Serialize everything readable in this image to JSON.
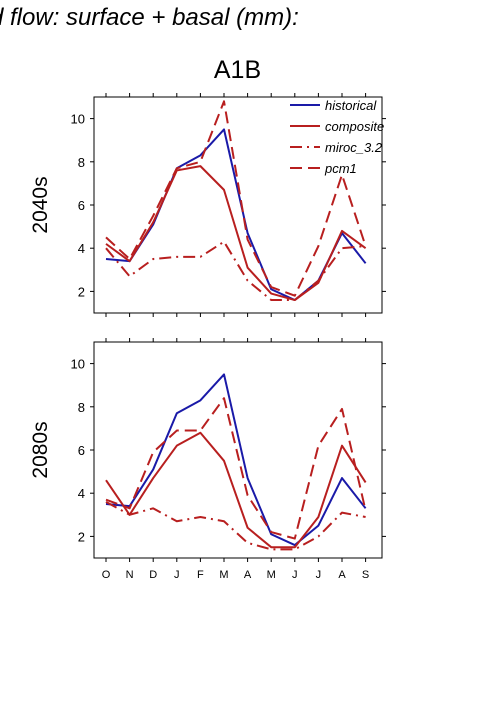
{
  "figure_title": "d flow: surface + basal (mm):",
  "panel_title": "A1B",
  "chart_data": [
    {
      "type": "line",
      "row_label": "2040s",
      "categories": [
        "O",
        "N",
        "D",
        "J",
        "F",
        "M",
        "A",
        "M",
        "J",
        "J",
        "A",
        "S"
      ],
      "ylim": [
        1,
        11
      ],
      "yticks": [
        "2",
        "4",
        "6",
        "8",
        "10"
      ],
      "series": [
        {
          "name": "historical",
          "color": "#1a1aa8",
          "dash": "solid",
          "values": [
            3.5,
            3.4,
            5.1,
            7.7,
            8.3,
            9.5,
            4.7,
            2.1,
            1.6,
            2.5,
            4.7,
            3.3
          ]
        },
        {
          "name": "composite",
          "color": "#b81f1f",
          "dash": "solid",
          "values": [
            4.2,
            3.4,
            5.2,
            7.6,
            7.8,
            6.7,
            3.1,
            1.9,
            1.6,
            2.4,
            4.8,
            4.0
          ]
        },
        {
          "name": "miroc_3.2",
          "color": "#b81f1f",
          "dash": "dashdot",
          "values": [
            4.0,
            2.7,
            3.5,
            3.6,
            3.6,
            4.3,
            2.5,
            1.6,
            1.6,
            2.5,
            4.0,
            4.1
          ]
        },
        {
          "name": "pcm1",
          "color": "#b81f1f",
          "dash": "dashed",
          "values": [
            4.5,
            3.5,
            5.5,
            7.7,
            8.0,
            10.8,
            4.4,
            2.2,
            1.8,
            4.1,
            7.4,
            4.1
          ]
        }
      ],
      "legend": "top-right"
    },
    {
      "type": "line",
      "row_label": "2080s",
      "categories": [
        "O",
        "N",
        "D",
        "J",
        "F",
        "M",
        "A",
        "M",
        "J",
        "J",
        "A",
        "S"
      ],
      "ylim": [
        1,
        11
      ],
      "yticks": [
        "2",
        "4",
        "6",
        "8",
        "10"
      ],
      "series": [
        {
          "name": "historical",
          "color": "#1a1aa8",
          "dash": "solid",
          "values": [
            3.5,
            3.4,
            5.1,
            7.7,
            8.3,
            9.5,
            4.7,
            2.1,
            1.6,
            2.5,
            4.7,
            3.3
          ]
        },
        {
          "name": "composite",
          "color": "#b81f1f",
          "dash": "solid",
          "values": [
            4.6,
            3.0,
            4.7,
            6.2,
            6.8,
            5.5,
            2.4,
            1.5,
            1.5,
            2.9,
            6.2,
            4.5
          ]
        },
        {
          "name": "miroc_3.2",
          "color": "#b81f1f",
          "dash": "dashdot",
          "values": [
            3.6,
            3.0,
            3.3,
            2.7,
            2.9,
            2.7,
            1.7,
            1.4,
            1.4,
            2.0,
            3.1,
            2.9
          ]
        },
        {
          "name": "pcm1",
          "color": "#b81f1f",
          "dash": "dashed",
          "values": [
            3.7,
            3.3,
            5.9,
            6.9,
            6.9,
            8.4,
            3.9,
            2.2,
            1.9,
            6.2,
            7.9,
            3.2
          ]
        }
      ]
    }
  ]
}
